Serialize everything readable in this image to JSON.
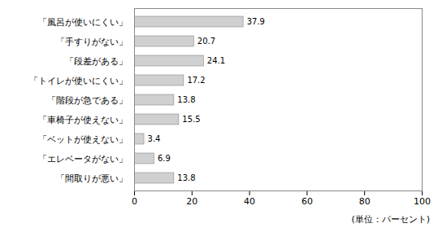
{
  "chart_data": {
    "type": "bar",
    "orientation": "horizontal",
    "categories": [
      "「風呂が使いにくい」",
      "「手すりがない」",
      "「段差がある」",
      "「トイレが使いにくい」",
      "「階段が急である」",
      "「車椅子が使えない」",
      "「ベットが使えない」",
      "「エレベータがない」",
      "「間取りが悪い」"
    ],
    "values": [
      37.9,
      20.7,
      24.1,
      17.2,
      13.8,
      15.5,
      3.4,
      6.9,
      13.8
    ],
    "color": "#d0d0d0",
    "xlim": [
      0,
      100
    ],
    "xticks": [
      0,
      20,
      40,
      60,
      80,
      100
    ],
    "data_labels": true,
    "grid": false,
    "annotations": [
      "(単位：パーセント)"
    ]
  }
}
